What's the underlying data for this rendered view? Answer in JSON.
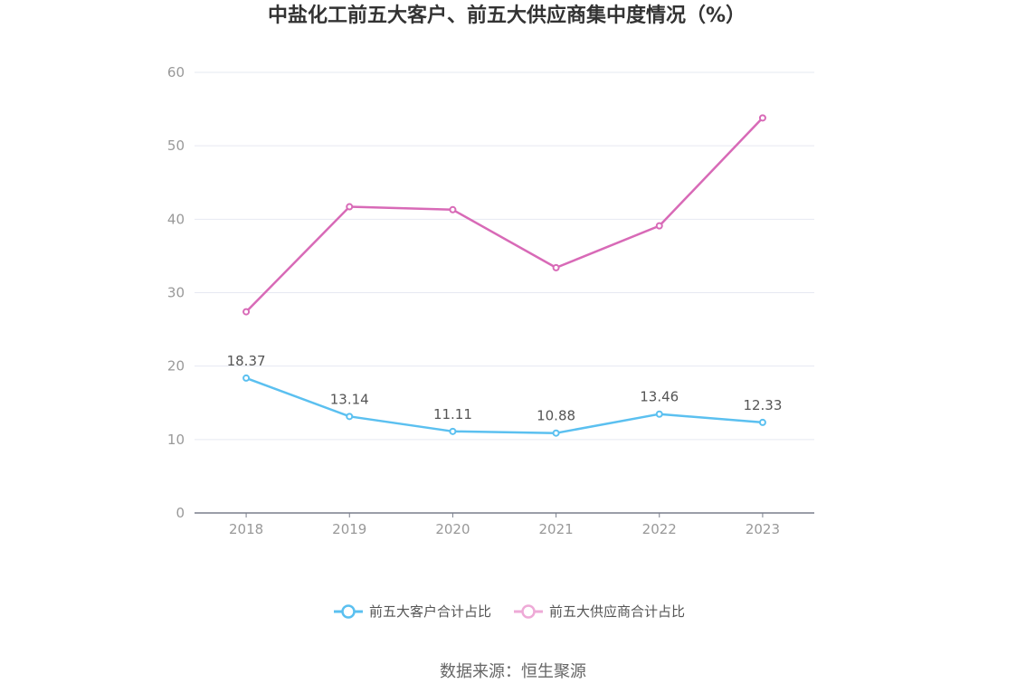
{
  "chart_data": {
    "type": "line",
    "title": "中盐化工前五大客户、前五大供应商集中度情况（%）",
    "categories": [
      "2018",
      "2019",
      "2020",
      "2021",
      "2022",
      "2023"
    ],
    "ylim": [
      0,
      60
    ],
    "yticks": [
      "0",
      "10",
      "20",
      "30",
      "40",
      "50",
      "60"
    ],
    "grid": true,
    "legend_position": "bottom",
    "series": [
      {
        "name": "前五大客户合计占比",
        "values": [
          18.37,
          13.14,
          11.11,
          10.88,
          13.46,
          12.33
        ],
        "labels": [
          "18.37",
          "13.14",
          "11.11",
          "10.88",
          "13.46",
          "12.33"
        ],
        "color": "#5bc0f0",
        "show_labels": true
      },
      {
        "name": "前五大供应商合计占比",
        "values": [
          27.4,
          41.7,
          41.3,
          33.4,
          39.1,
          53.8
        ],
        "color": "#d86ab7",
        "legend_color": "#eeaad7",
        "show_labels": false
      }
    ],
    "source": "数据来源：恒生聚源"
  }
}
